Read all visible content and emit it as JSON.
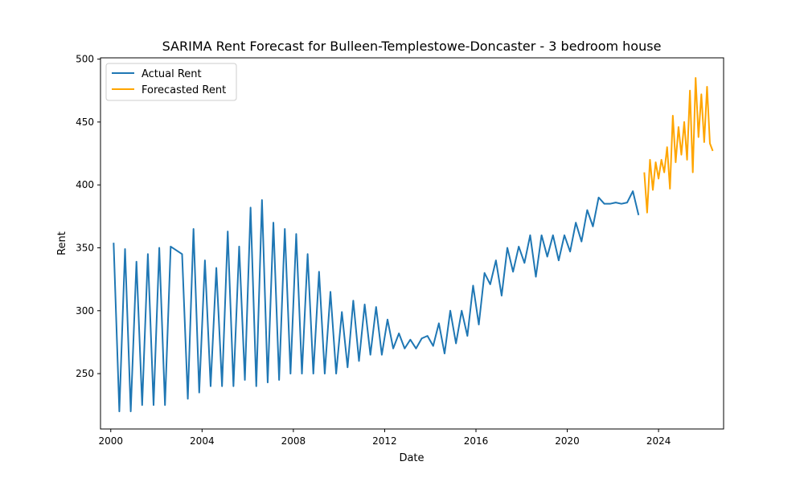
{
  "chart_data": {
    "type": "line",
    "title": "SARIMA Rent Forecast for Bulleen-Templestowe-Doncaster - 3 bedroom house",
    "xlabel": "Date",
    "ylabel": "Rent",
    "xlim": [
      1999.55,
      2026.85
    ],
    "ylim": [
      206,
      501
    ],
    "x_ticks": [
      2000,
      2004,
      2008,
      2012,
      2016,
      2020,
      2024
    ],
    "y_ticks": [
      250,
      300,
      350,
      400,
      450,
      500
    ],
    "grid": false,
    "legend_position": "top-left",
    "series": [
      {
        "name": "Actual Rent",
        "color": "#1f77b4",
        "x": [
          2000.125,
          2000.375,
          2000.625,
          2000.875,
          2001.125,
          2001.375,
          2001.625,
          2001.875,
          2002.125,
          2002.375,
          2002.625,
          2003.125,
          2003.375,
          2003.625,
          2003.875,
          2004.125,
          2004.375,
          2004.625,
          2004.875,
          2005.125,
          2005.375,
          2005.625,
          2005.875,
          2006.125,
          2006.375,
          2006.625,
          2006.875,
          2007.125,
          2007.375,
          2007.625,
          2007.875,
          2008.125,
          2008.375,
          2008.625,
          2008.875,
          2009.125,
          2009.375,
          2009.625,
          2009.875,
          2010.125,
          2010.375,
          2010.625,
          2010.875,
          2011.125,
          2011.375,
          2011.625,
          2011.875,
          2012.125,
          2012.375,
          2012.625,
          2012.875,
          2013.125,
          2013.375,
          2013.625,
          2013.875,
          2014.125,
          2014.375,
          2014.625,
          2014.875,
          2015.125,
          2015.375,
          2015.625,
          2015.875,
          2016.125,
          2016.375,
          2016.625,
          2016.875,
          2017.125,
          2017.375,
          2017.625,
          2017.875,
          2018.125,
          2018.375,
          2018.625,
          2018.875,
          2019.125,
          2019.375,
          2019.625,
          2019.875,
          2020.125,
          2020.375,
          2020.625,
          2020.875,
          2021.125,
          2021.375,
          2021.625,
          2021.875,
          2022.125,
          2022.375,
          2022.625,
          2022.875,
          2023.125
        ],
        "values": [
          354,
          220,
          349,
          220,
          339,
          225,
          345,
          225,
          350,
          225,
          351,
          345,
          230,
          365,
          235,
          340,
          240,
          334,
          240,
          363,
          240,
          351,
          245,
          382,
          240,
          388,
          243,
          370,
          245,
          365,
          250,
          361,
          250,
          345,
          250,
          331,
          250,
          315,
          250,
          299,
          255,
          308,
          260,
          305,
          265,
          303,
          265,
          293,
          270,
          282,
          270,
          277,
          270,
          278,
          280,
          272,
          290,
          266,
          300,
          274,
          300,
          280,
          320,
          289,
          330,
          321,
          340,
          312,
          350,
          331,
          351,
          338,
          360,
          327,
          360,
          343,
          360,
          340,
          360,
          347,
          370,
          355,
          380,
          367,
          390,
          385,
          385,
          386,
          385,
          386,
          395,
          376
        ]
      },
      {
        "name": "Forecasted Rent",
        "color": "#ffa500",
        "x": [
          2023.375,
          2023.5,
          2023.625,
          2023.75,
          2023.875,
          2024.0,
          2024.125,
          2024.25,
          2024.375,
          2024.5,
          2024.625,
          2024.75,
          2024.875,
          2025.0,
          2025.125,
          2025.25,
          2025.375,
          2025.5,
          2025.625,
          2025.75,
          2025.875,
          2026.0,
          2026.125,
          2026.25,
          2026.375
        ],
        "values": [
          410,
          378,
          420,
          396,
          418,
          405,
          420,
          410,
          430,
          397,
          455,
          418,
          446,
          424,
          450,
          420,
          475,
          410,
          485,
          438,
          472,
          434,
          478,
          433,
          427
        ]
      }
    ]
  }
}
